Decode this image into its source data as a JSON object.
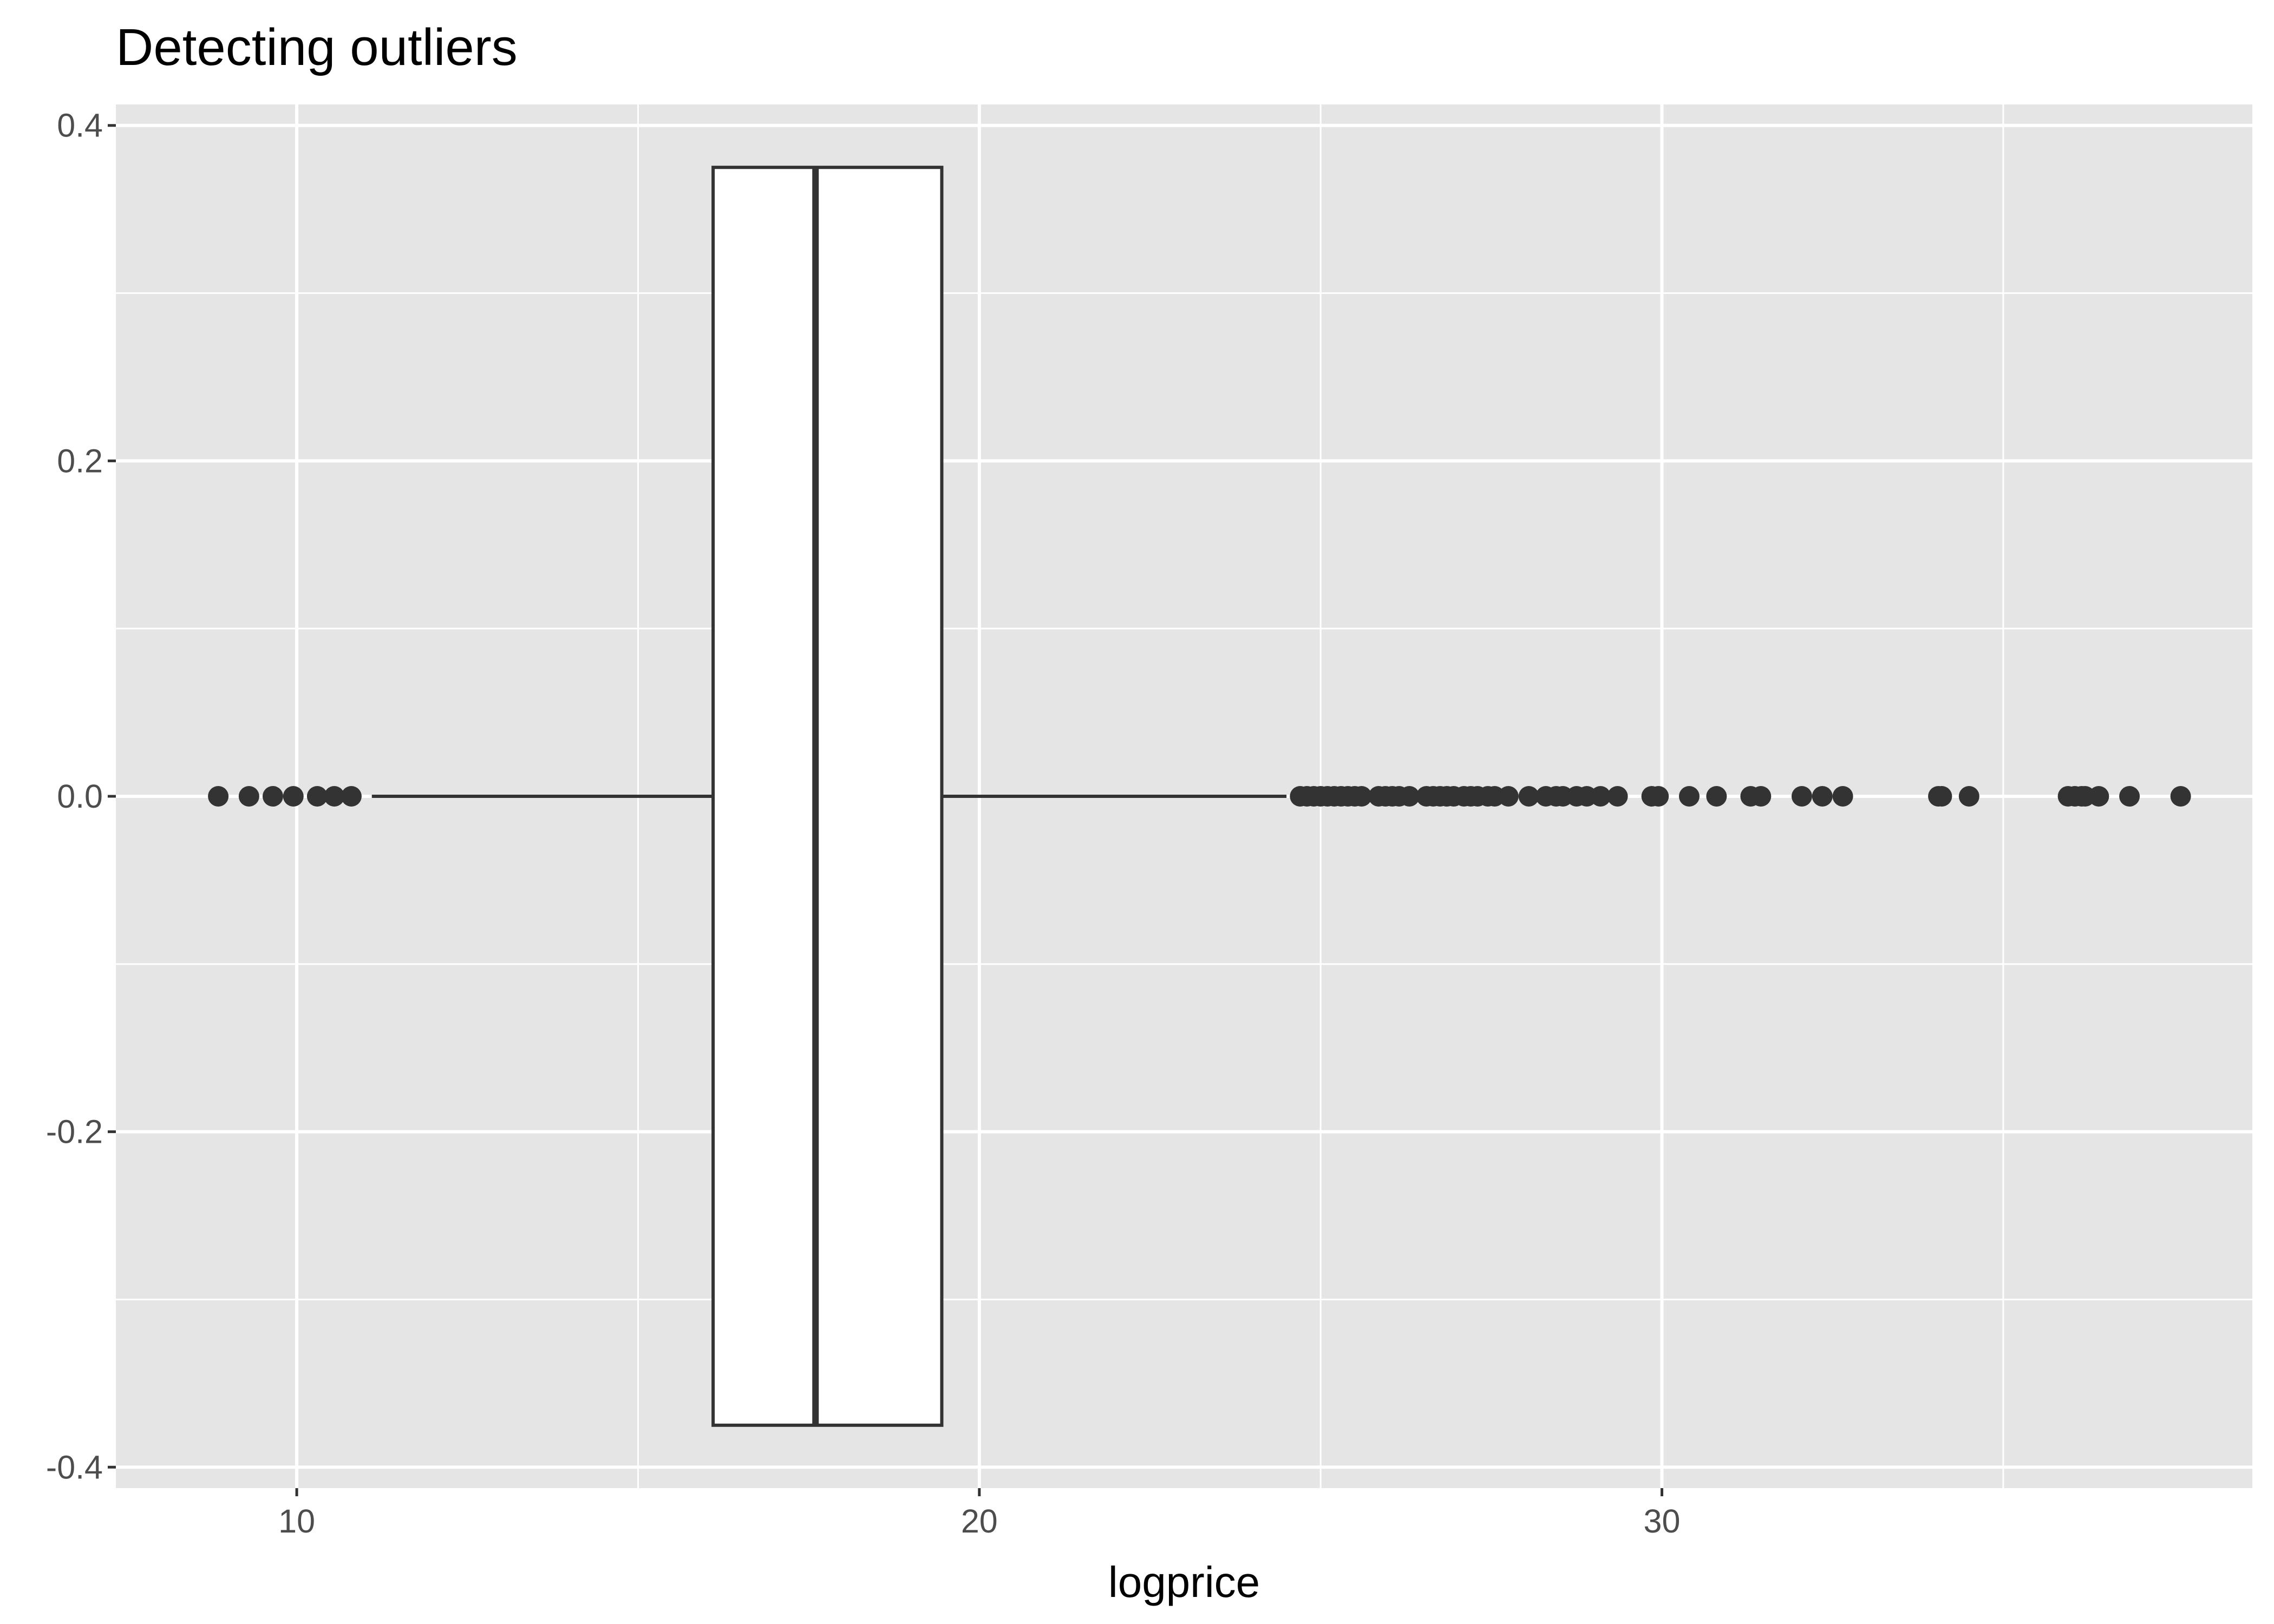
{
  "chart_data": {
    "type": "boxplot",
    "title": "Detecting outliers",
    "xlabel": "logprice",
    "ylabel": "",
    "xlim": [
      7.35,
      38.65
    ],
    "ylim": [
      -0.4125,
      0.4125
    ],
    "grid": true,
    "x_major_ticks": [
      10,
      20,
      30
    ],
    "x_major_tick_labels": [
      "10",
      "20",
      "30"
    ],
    "x_minor_ticks": [
      15,
      25,
      35
    ],
    "y_major_ticks": [
      -0.4,
      -0.2,
      0.0,
      0.2,
      0.4
    ],
    "y_major_tick_labels": [
      "-0.4",
      "-0.2",
      "0.0",
      "0.2",
      "0.4"
    ],
    "y_minor_ticks": [
      -0.3,
      -0.1,
      0.1,
      0.3
    ],
    "box": {
      "y": 0.0,
      "half_width": 0.375,
      "q1": 16.1,
      "median": 17.6,
      "q3": 19.45,
      "whisker_low": 11.1,
      "whisker_high": 24.5
    },
    "outliers": [
      8.85,
      9.3,
      9.65,
      9.95,
      10.3,
      10.55,
      10.8,
      24.7,
      24.8,
      24.9,
      25.0,
      25.1,
      25.2,
      25.3,
      25.4,
      25.5,
      25.6,
      25.85,
      25.95,
      26.05,
      26.15,
      26.3,
      26.55,
      26.65,
      26.75,
      26.85,
      26.95,
      27.1,
      27.2,
      27.3,
      27.45,
      27.55,
      27.75,
      28.05,
      28.3,
      28.45,
      28.55,
      28.75,
      28.9,
      29.1,
      29.35,
      29.85,
      29.95,
      30.4,
      30.8,
      31.3,
      31.45,
      32.05,
      32.35,
      32.65,
      34.05,
      34.1,
      34.5,
      35.95,
      36.05,
      36.15,
      36.2,
      36.4,
      36.85,
      37.6
    ]
  }
}
